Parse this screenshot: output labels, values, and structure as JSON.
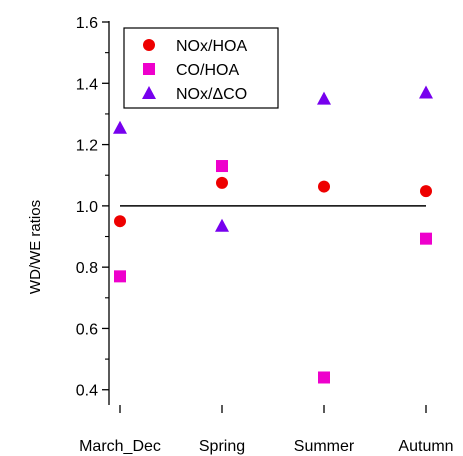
{
  "chart_data": {
    "type": "scatter",
    "title": "",
    "xlabel": "",
    "ylabel": "WD/WE ratios",
    "categories": [
      "March_Dec",
      "Spring",
      "Summer",
      "Autumn"
    ],
    "ylim": [
      0.36,
      1.6
    ],
    "yticks": [
      0.4,
      0.6,
      0.8,
      1.0,
      1.2,
      1.4,
      1.6
    ],
    "ytick_labels": [
      "0.4",
      "0.6",
      "0.8",
      "1.0",
      "1.2",
      "1.4",
      "1.6"
    ],
    "reference_line": 1.0,
    "grid": false,
    "legend_position": "top-left",
    "series": [
      {
        "name": "NOx/HOA",
        "marker": "circle",
        "color": "#ee0000",
        "values": [
          0.95,
          1.075,
          1.063,
          1.048
        ]
      },
      {
        "name": "CO/HOA",
        "marker": "square",
        "color": "#ee00cc",
        "values": [
          0.77,
          1.13,
          0.44,
          0.893
        ]
      },
      {
        "name": "NOx/ΔCO",
        "marker": "triangle",
        "color": "#7700ee",
        "values": [
          1.255,
          0.935,
          1.35,
          1.37
        ]
      }
    ]
  }
}
